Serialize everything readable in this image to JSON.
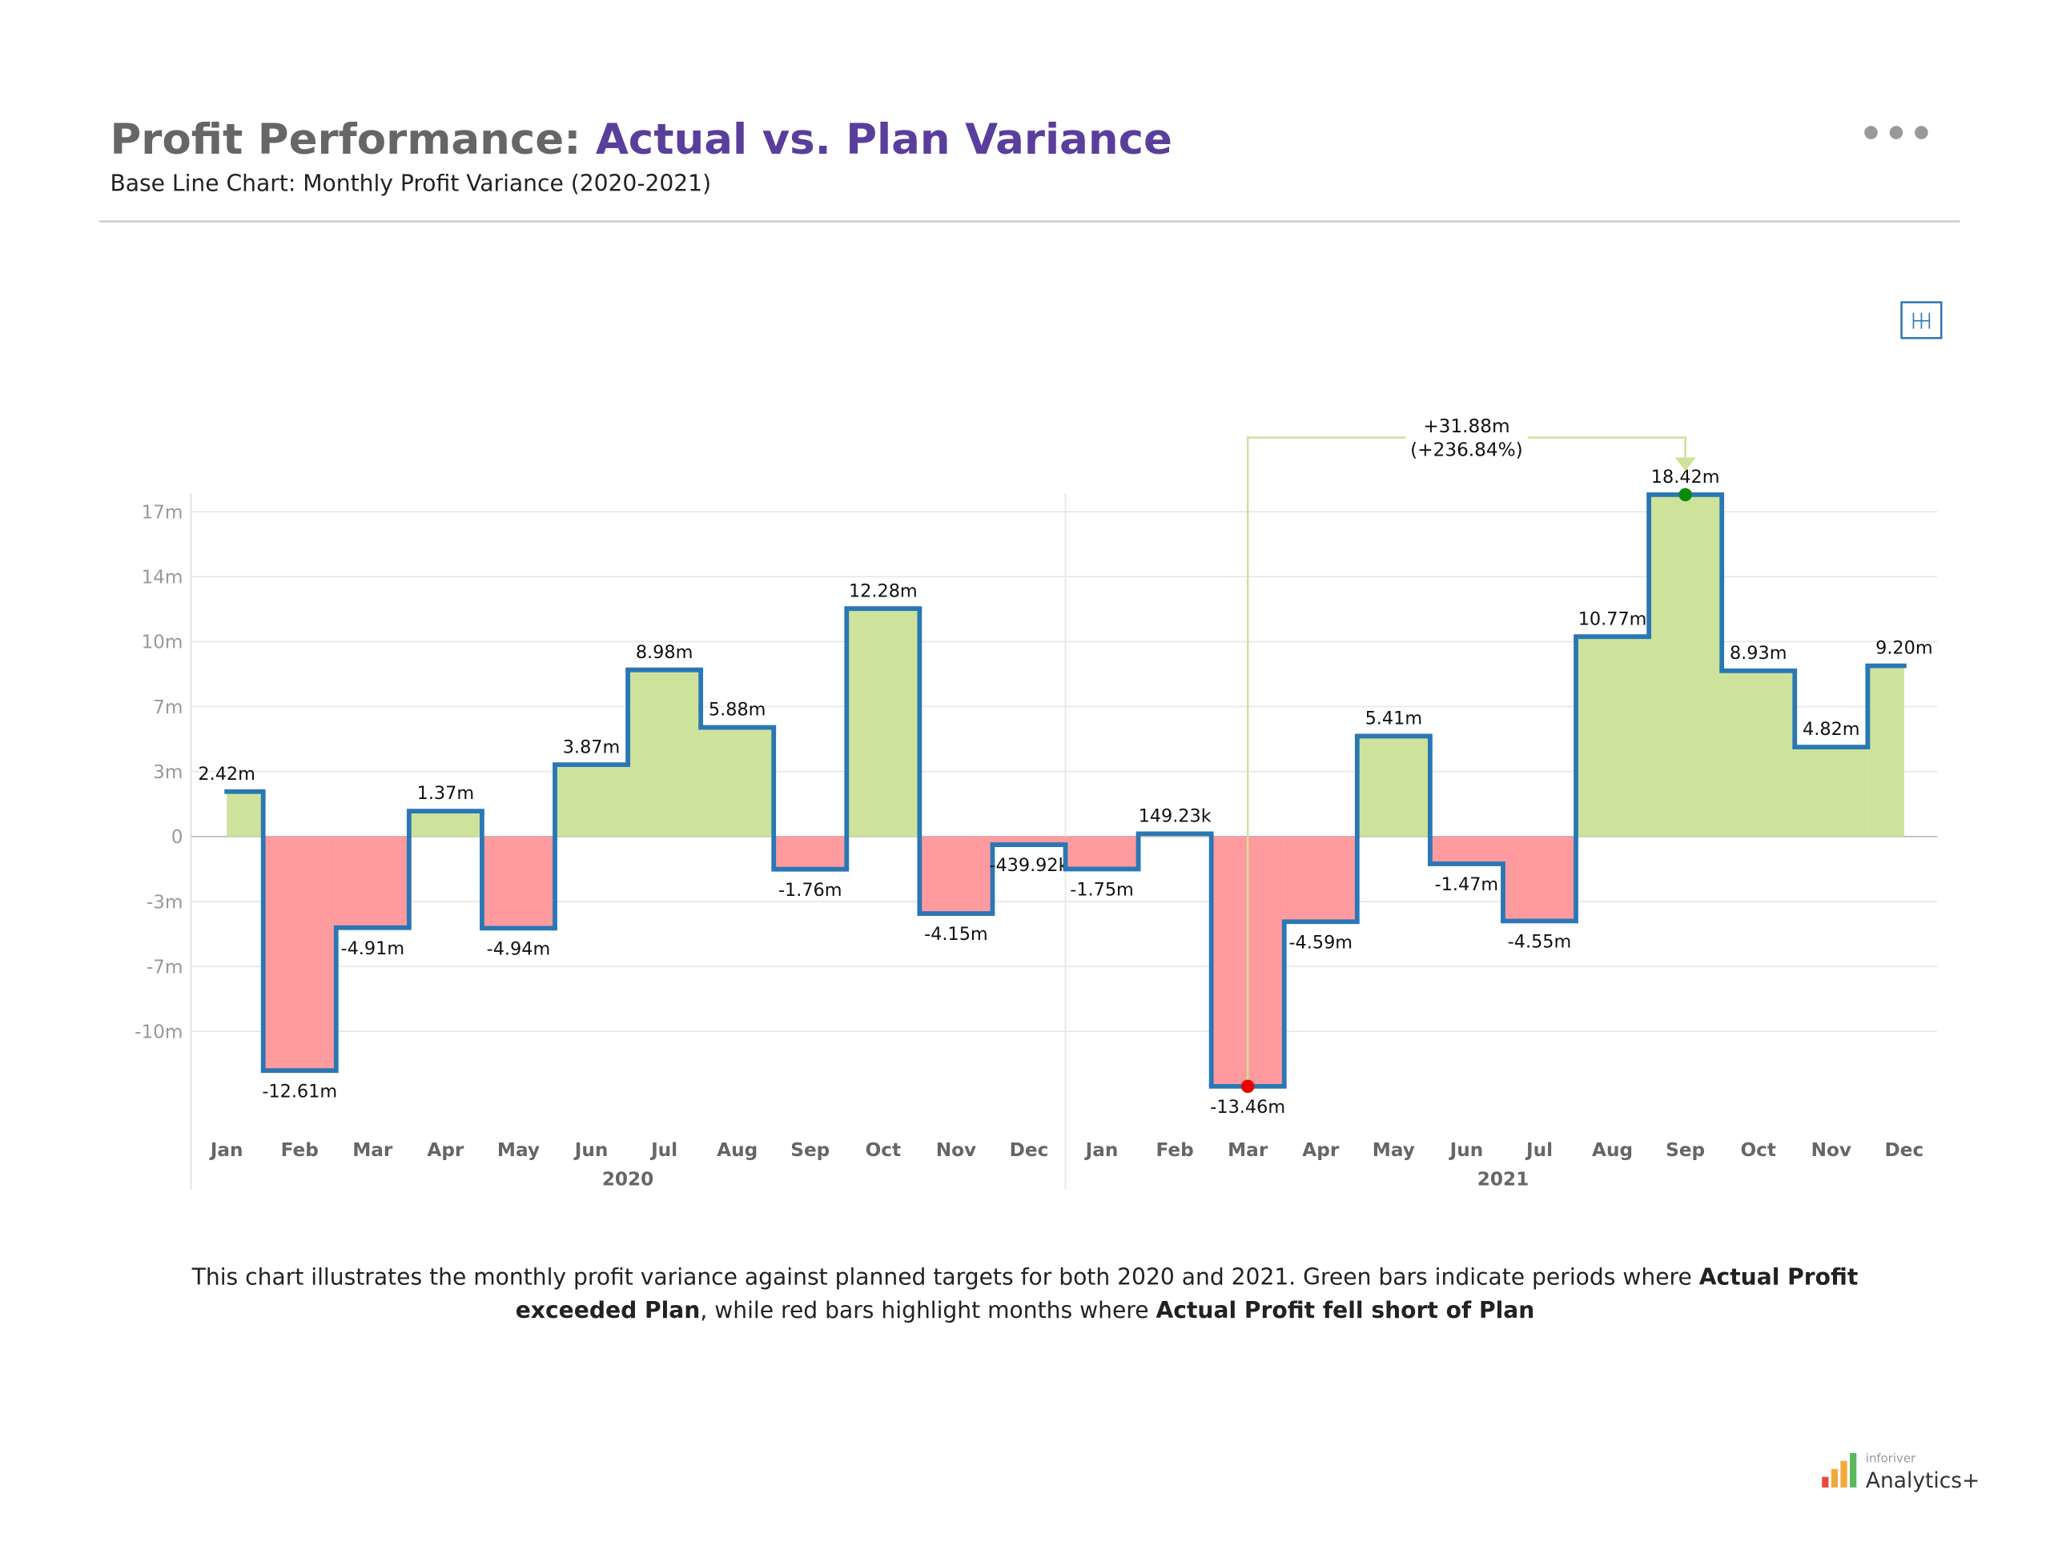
{
  "chart_data": {
    "type": "step-variance",
    "title": [
      "Profit Performance: ",
      "Actual vs. Plan Variance"
    ],
    "subtitle": "Base Line Chart: Monthly Profit Variance (2020-2021)",
    "categories": [
      "Jan",
      "Feb",
      "Mar",
      "Apr",
      "May",
      "Jun",
      "Jul",
      "Aug",
      "Sep",
      "Oct",
      "Nov",
      "Dec",
      "Jan",
      "Feb",
      "Mar",
      "Apr",
      "May",
      "Jun",
      "Jul",
      "Aug",
      "Sep",
      "Oct",
      "Nov",
      "Dec"
    ],
    "years": [
      "2020",
      "2021"
    ],
    "values": [
      2.42,
      -12.61,
      -4.91,
      1.37,
      -4.94,
      3.87,
      8.98,
      5.88,
      -1.76,
      12.28,
      -4.15,
      -0.43992,
      -1.75,
      0.14923,
      -13.46,
      -4.59,
      5.41,
      -1.47,
      -4.55,
      10.77,
      18.42,
      8.93,
      4.82,
      9.2
    ],
    "value_labels": [
      "2.42m",
      "-12.61m",
      "-4.91m",
      "1.37m",
      "-4.94m",
      "3.87m",
      "8.98m",
      "5.88m",
      "-1.76m",
      "12.28m",
      "-4.15m",
      "-439.92k",
      "-1.75m",
      "149.23k",
      "-13.46m",
      "-4.59m",
      "5.41m",
      "-1.47m",
      "-4.55m",
      "10.77m",
      "18.42m",
      "8.93m",
      "4.82m",
      "9.20m"
    ],
    "ylim": [
      -15.5,
      18.5
    ],
    "yticks": [
      {
        "value": -10.5,
        "label": "-10m"
      },
      {
        "value": -7,
        "label": "-7m"
      },
      {
        "value": -3.5,
        "label": "-3m"
      },
      0,
      {
        "value": 3.5,
        "label": "3m"
      },
      {
        "value": 7,
        "label": "7m"
      },
      {
        "value": 10.5,
        "label": "10m"
      },
      {
        "value": 14,
        "label": "14m"
      },
      {
        "value": 17.5,
        "label": "17m"
      }
    ],
    "grid": true,
    "positive_color": "#cde29a",
    "negative_color": "#ff9a9e",
    "line_color": "#2a77b5",
    "annotation": [
      "+31.88m",
      "(+236.84%)"
    ],
    "description": [
      {
        "text": "This chart illustrates the monthly profit variance against planned targets for both 2020 and 2021. Green bars indicate periods where ",
        "bold": false
      },
      {
        "text": "Actual Profit exceeded Plan",
        "bold": true
      },
      {
        "text": ", while red bars highlight months where ",
        "bold": false
      },
      {
        "text": "Actual Profit fell short of Plan",
        "bold": true
      }
    ]
  },
  "logo": {
    "small": "inforiver",
    "large": "Analytics+"
  }
}
